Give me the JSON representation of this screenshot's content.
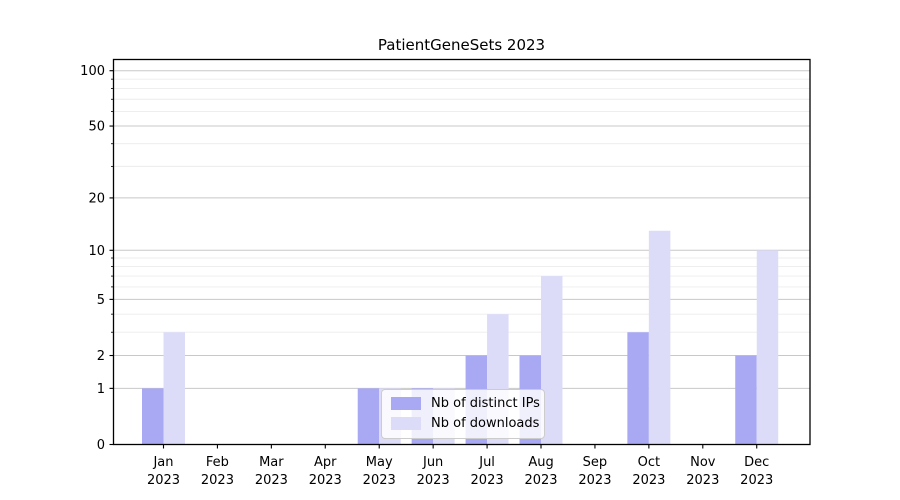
{
  "title": "PatientGeneSets 2023",
  "chart_data": {
    "type": "bar",
    "title": "PatientGeneSets 2023",
    "x_tick_labels": [
      [
        "Jan",
        "2023"
      ],
      [
        "Feb",
        "2023"
      ],
      [
        "Mar",
        "2023"
      ],
      [
        "Apr",
        "2023"
      ],
      [
        "May",
        "2023"
      ],
      [
        "Jun",
        "2023"
      ],
      [
        "Jul",
        "2023"
      ],
      [
        "Aug",
        "2023"
      ],
      [
        "Sep",
        "2023"
      ],
      [
        "Oct",
        "2023"
      ],
      [
        "Nov",
        "2023"
      ],
      [
        "Dec",
        "2023"
      ]
    ],
    "series": [
      {
        "name": "Nb of distinct IPs",
        "color": "#a9a9f3",
        "values": [
          1,
          0,
          0,
          0,
          1,
          1,
          2,
          2,
          0,
          3,
          0,
          2
        ]
      },
      {
        "name": "Nb of downloads",
        "color": "#dcdcf8",
        "values": [
          3,
          0,
          0,
          0,
          1,
          1,
          4,
          7,
          0,
          13,
          0,
          10
        ]
      }
    ],
    "y_scale": "log1p",
    "y_major_ticks": [
      0,
      1,
      2,
      5,
      10,
      20,
      50,
      100
    ],
    "y_minor_gridlines": [
      3,
      4,
      6,
      7,
      8,
      9,
      30,
      40,
      60,
      70,
      80,
      90
    ],
    "ylim": [
      0,
      115
    ],
    "grid": true,
    "legend_position": "lower center"
  },
  "colors": {
    "major_grid": "#c8c8c8",
    "minor_grid": "#ececec",
    "spine": "#000000",
    "tick_label": "#000000",
    "background": "#ffffff"
  }
}
